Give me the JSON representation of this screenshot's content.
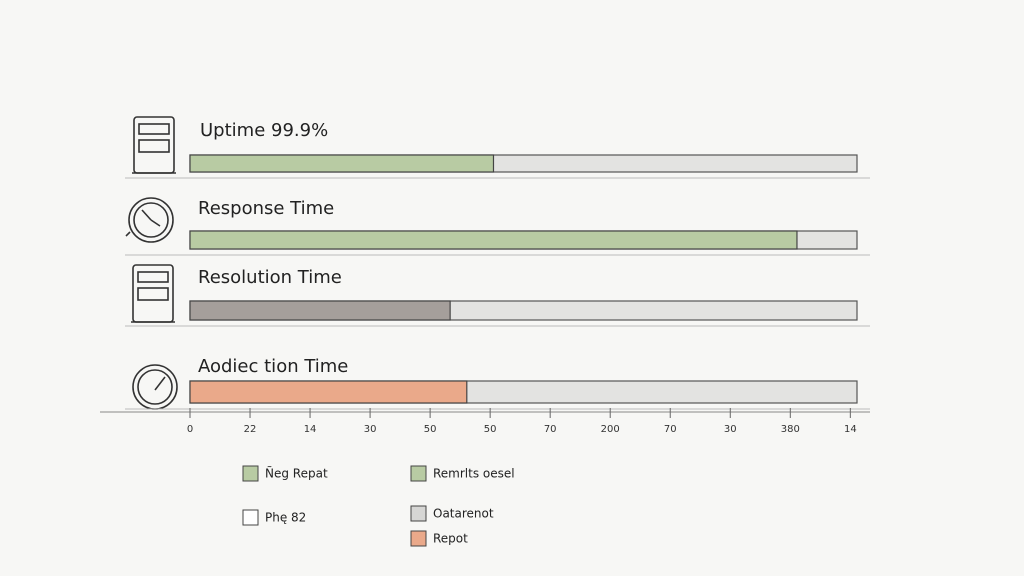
{
  "chart_data": {
    "type": "bar",
    "categories": [
      "Uptime 99.9%",
      "Response Time",
      "Resolution Time",
      "Aodiec tion Time"
    ],
    "values": [
      45.5,
      91,
      39,
      41.5
    ],
    "colors": [
      "#b8cba3",
      "#b8cba3",
      "#a59f9b",
      "#eaa98a"
    ],
    "track_color": "#e3e3e1",
    "xlim": [
      0,
      100
    ],
    "xticks": [
      {
        "value": 0,
        "label": "0"
      },
      {
        "value": 9,
        "label": "22"
      },
      {
        "value": 18,
        "label": "14"
      },
      {
        "value": 27,
        "label": "30"
      },
      {
        "value": 36,
        "label": "50"
      },
      {
        "value": 45,
        "label": "50"
      },
      {
        "value": 54,
        "label": "70"
      },
      {
        "value": 63,
        "label": "200"
      },
      {
        "value": 72,
        "label": "70"
      },
      {
        "value": 81,
        "label": "30"
      },
      {
        "value": 90,
        "label": "380"
      },
      {
        "value": 99,
        "label": "14"
      }
    ],
    "legend": [
      {
        "label": "Ñeg Repat",
        "color": "#b8cba3"
      },
      {
        "label": "Remrlts oesel",
        "color": "#b8cba3"
      },
      {
        "label": "Phę 82",
        "color": "#ffffff"
      },
      {
        "label": "Oatarenot",
        "color": "#d6d6d4"
      },
      {
        "label": "Repot",
        "color": "#eaa98a"
      }
    ]
  }
}
